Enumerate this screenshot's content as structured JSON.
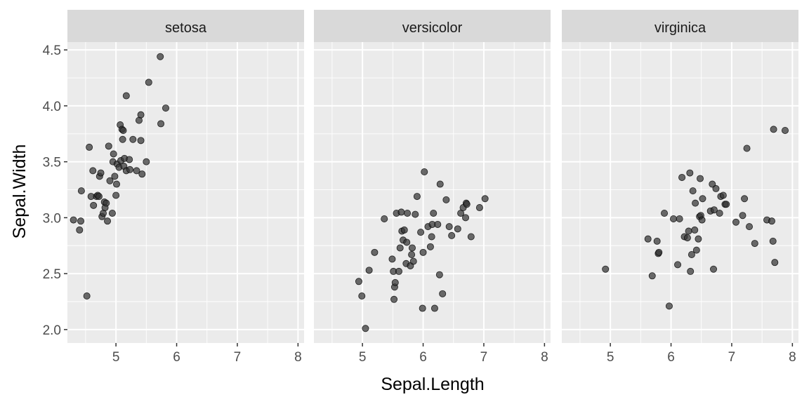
{
  "chart_data": {
    "type": "scatter",
    "xlabel": "Sepal.Length",
    "ylabel": "Sepal.Width",
    "xlim": [
      4.2,
      8.1
    ],
    "ylim": [
      1.88,
      4.57
    ],
    "x_ticks": [
      5,
      6,
      7,
      8
    ],
    "y_ticks": [
      2.0,
      2.5,
      3.0,
      3.5,
      4.0,
      4.5
    ],
    "grid": true,
    "facet_by": "Species",
    "point_color": "#333333",
    "panel_background": "#ebebeb",
    "strip_background": "#d9d9d9",
    "panels": [
      {
        "label": "setosa",
        "points": [
          [
            4.3,
            2.98
          ],
          [
            4.4,
            2.89
          ],
          [
            4.42,
            2.97
          ],
          [
            4.43,
            3.24
          ],
          [
            4.52,
            2.3
          ],
          [
            4.56,
            3.63
          ],
          [
            4.59,
            3.19
          ],
          [
            4.62,
            3.42
          ],
          [
            4.63,
            3.11
          ],
          [
            4.68,
            3.19
          ],
          [
            4.7,
            3.2
          ],
          [
            4.72,
            3.19
          ],
          [
            4.73,
            3.37
          ],
          [
            4.75,
            3.4
          ],
          [
            4.77,
            3.01
          ],
          [
            4.79,
            3.04
          ],
          [
            4.81,
            3.14
          ],
          [
            4.82,
            3.09
          ],
          [
            4.84,
            3.13
          ],
          [
            4.86,
            2.97
          ],
          [
            4.88,
            3.64
          ],
          [
            4.9,
            3.33
          ],
          [
            4.94,
            3.04
          ],
          [
            4.95,
            3.5
          ],
          [
            4.96,
            3.57
          ],
          [
            4.98,
            3.37
          ],
          [
            5.0,
            3.2
          ],
          [
            5.01,
            3.3
          ],
          [
            5.02,
            3.48
          ],
          [
            5.05,
            3.45
          ],
          [
            5.07,
            3.83
          ],
          [
            5.08,
            3.51
          ],
          [
            5.1,
            3.79
          ],
          [
            5.11,
            3.7
          ],
          [
            5.12,
            3.78
          ],
          [
            5.13,
            3.46
          ],
          [
            5.14,
            3.53
          ],
          [
            5.17,
            3.42
          ],
          [
            5.17,
            4.09
          ],
          [
            5.22,
            3.52
          ],
          [
            5.23,
            3.43
          ],
          [
            5.28,
            3.7
          ],
          [
            5.34,
            3.42
          ],
          [
            5.38,
            3.87
          ],
          [
            5.41,
            3.92
          ],
          [
            5.41,
            3.69
          ],
          [
            5.43,
            3.39
          ],
          [
            5.5,
            3.5
          ],
          [
            5.54,
            4.21
          ],
          [
            5.73,
            4.44
          ],
          [
            5.74,
            3.84
          ],
          [
            5.82,
            3.98
          ]
        ]
      },
      {
        "label": "versicolor",
        "points": [
          [
            4.94,
            2.43
          ],
          [
            4.99,
            2.3
          ],
          [
            5.05,
            2.01
          ],
          [
            5.11,
            2.53
          ],
          [
            5.2,
            2.69
          ],
          [
            5.36,
            2.99
          ],
          [
            5.49,
            2.63
          ],
          [
            5.51,
            2.52
          ],
          [
            5.52,
            2.27
          ],
          [
            5.53,
            2.38
          ],
          [
            5.54,
            2.42
          ],
          [
            5.56,
            3.04
          ],
          [
            5.6,
            2.52
          ],
          [
            5.62,
            2.73
          ],
          [
            5.64,
            3.05
          ],
          [
            5.65,
            2.88
          ],
          [
            5.67,
            2.8
          ],
          [
            5.69,
            2.89
          ],
          [
            5.72,
            2.59
          ],
          [
            5.73,
            2.78
          ],
          [
            5.74,
            3.04
          ],
          [
            5.79,
            2.57
          ],
          [
            5.81,
            2.67
          ],
          [
            5.82,
            2.73
          ],
          [
            5.84,
            2.61
          ],
          [
            5.87,
            3.03
          ],
          [
            5.9,
            3.19
          ],
          [
            5.96,
            2.87
          ],
          [
            5.99,
            2.19
          ],
          [
            6.0,
            2.69
          ],
          [
            6.02,
            3.41
          ],
          [
            6.08,
            2.92
          ],
          [
            6.12,
            2.74
          ],
          [
            6.14,
            2.83
          ],
          [
            6.15,
            2.94
          ],
          [
            6.17,
            3.04
          ],
          [
            6.19,
            2.19
          ],
          [
            6.24,
            2.94
          ],
          [
            6.27,
            2.49
          ],
          [
            6.28,
            3.3
          ],
          [
            6.32,
            2.32
          ],
          [
            6.38,
            3.16
          ],
          [
            6.43,
            2.92
          ],
          [
            6.47,
            2.84
          ],
          [
            6.57,
            2.9
          ],
          [
            6.62,
            3.04
          ],
          [
            6.66,
            3.09
          ],
          [
            6.7,
            3.0
          ],
          [
            6.71,
            3.13
          ],
          [
            6.72,
            3.12
          ],
          [
            6.79,
            2.83
          ],
          [
            6.93,
            3.09
          ],
          [
            7.02,
            3.17
          ]
        ]
      },
      {
        "label": "virginica",
        "points": [
          [
            4.92,
            2.54
          ],
          [
            5.62,
            2.81
          ],
          [
            5.69,
            2.48
          ],
          [
            5.77,
            2.79
          ],
          [
            5.79,
            2.68
          ],
          [
            5.8,
            2.69
          ],
          [
            5.89,
            3.04
          ],
          [
            5.97,
            2.21
          ],
          [
            6.04,
            2.99
          ],
          [
            6.11,
            2.58
          ],
          [
            6.14,
            2.99
          ],
          [
            6.18,
            3.36
          ],
          [
            6.22,
            2.83
          ],
          [
            6.27,
            2.82
          ],
          [
            6.29,
            2.88
          ],
          [
            6.31,
            3.4
          ],
          [
            6.32,
            2.52
          ],
          [
            6.34,
            2.67
          ],
          [
            6.36,
            3.24
          ],
          [
            6.39,
            2.89
          ],
          [
            6.4,
            3.13
          ],
          [
            6.42,
            2.71
          ],
          [
            6.45,
            2.81
          ],
          [
            6.47,
            3.01
          ],
          [
            6.48,
            3.35
          ],
          [
            6.49,
            3.02
          ],
          [
            6.51,
            2.98
          ],
          [
            6.52,
            3.17
          ],
          [
            6.65,
            3.06
          ],
          [
            6.68,
            3.3
          ],
          [
            6.7,
            2.54
          ],
          [
            6.71,
            3.07
          ],
          [
            6.74,
            3.26
          ],
          [
            6.8,
            3.04
          ],
          [
            6.82,
            3.19
          ],
          [
            6.86,
            3.2
          ],
          [
            6.89,
            3.12
          ],
          [
            6.91,
            3.12
          ],
          [
            7.07,
            2.96
          ],
          [
            7.18,
            3.02
          ],
          [
            7.21,
            3.17
          ],
          [
            7.25,
            3.62
          ],
          [
            7.29,
            2.92
          ],
          [
            7.38,
            2.77
          ],
          [
            7.58,
            2.98
          ],
          [
            7.66,
            2.97
          ],
          [
            7.68,
            2.79
          ],
          [
            7.69,
            3.79
          ],
          [
            7.71,
            2.6
          ],
          [
            7.88,
            3.78
          ]
        ]
      }
    ]
  }
}
